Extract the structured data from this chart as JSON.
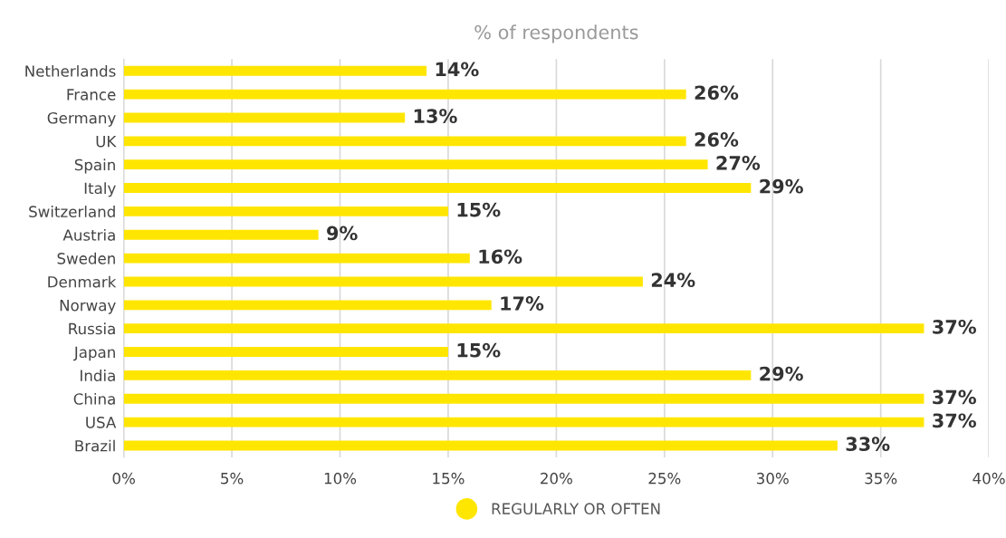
{
  "chart_data": {
    "type": "bar",
    "orientation": "horizontal",
    "title": "% of respondents",
    "categories": [
      "Netherlands",
      "France",
      "Germany",
      "UK",
      "Spain",
      "Italy",
      "Switzerland",
      "Austria",
      "Sweden",
      "Denmark",
      "Norway",
      "Russia",
      "Japan",
      "India",
      "China",
      "USA",
      "Brazil"
    ],
    "series": [
      {
        "name": "REGULARLY OR OFTEN",
        "color": "#ffe600",
        "values": [
          14,
          26,
          13,
          26,
          27,
          29,
          15,
          9,
          16,
          24,
          17,
          37,
          15,
          29,
          37,
          37,
          33
        ],
        "value_labels": [
          "14%",
          "26%",
          "13%",
          "26%",
          "27%",
          "29%",
          "15%",
          "9%",
          "16%",
          "24%",
          "17%",
          "37%",
          "15%",
          "29%",
          "37%",
          "37%",
          "33%"
        ]
      }
    ],
    "xlim": [
      0,
      40
    ],
    "xticks": [
      {
        "value": 0,
        "label": "0%"
      },
      {
        "value": 5,
        "label": "5%"
      },
      {
        "value": 10,
        "label": "10%"
      },
      {
        "value": 15,
        "label": "15%"
      },
      {
        "value": 20,
        "label": "20%"
      },
      {
        "value": 25,
        "label": "25%"
      },
      {
        "value": 30,
        "label": "30%"
      },
      {
        "value": 35,
        "label": "35%"
      },
      {
        "value": 40,
        "label": "40%"
      }
    ],
    "grid": "x",
    "legend": "bottom",
    "marker": "circle"
  }
}
